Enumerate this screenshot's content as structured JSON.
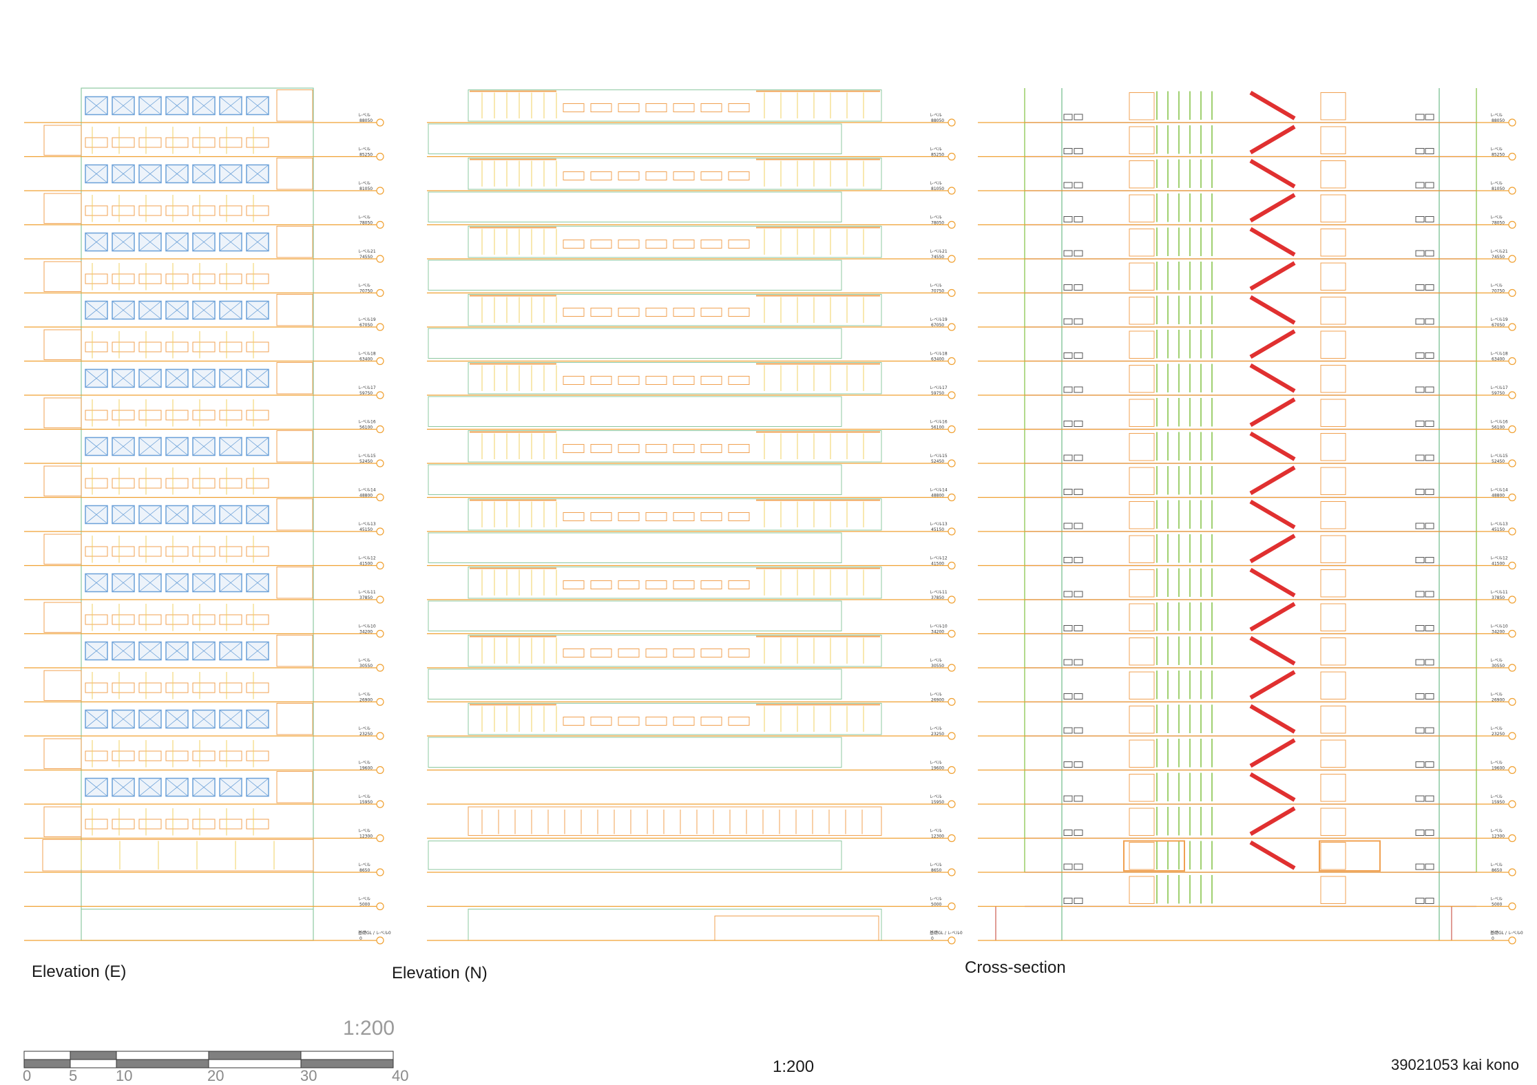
{
  "drawings": {
    "east": {
      "caption": "Elevation (E)"
    },
    "north": {
      "caption": "Elevation (N)"
    },
    "section": {
      "caption": "Cross-section"
    }
  },
  "levels": [
    {
      "label": "レベル",
      "value": "88050"
    },
    {
      "label": "レベル",
      "value": "85250"
    },
    {
      "label": "レベル",
      "value": "81050"
    },
    {
      "label": "レベル",
      "value": "78050"
    },
    {
      "label": "レベル21",
      "value": "74550"
    },
    {
      "label": "レベル",
      "value": "70750"
    },
    {
      "label": "レベル19",
      "value": "67050"
    },
    {
      "label": "レベル18",
      "value": "63400"
    },
    {
      "label": "レベル17",
      "value": "59750"
    },
    {
      "label": "レベル16",
      "value": "56100"
    },
    {
      "label": "レベル15",
      "value": "52450"
    },
    {
      "label": "レベル14",
      "value": "48800"
    },
    {
      "label": "レベル13",
      "value": "45150"
    },
    {
      "label": "レベル12",
      "value": "41500"
    },
    {
      "label": "レベル11",
      "value": "37850"
    },
    {
      "label": "レベル10",
      "value": "34200"
    },
    {
      "label": "レベル",
      "value": "30550"
    },
    {
      "label": "レベル",
      "value": "26900"
    },
    {
      "label": "レベル",
      "value": "23250"
    },
    {
      "label": "レベル",
      "value": "19600"
    },
    {
      "label": "レベル",
      "value": "15950"
    },
    {
      "label": "レベル",
      "value": "12300"
    },
    {
      "label": "レベル",
      "value": "8650"
    },
    {
      "label": "レベル",
      "value": "5000"
    },
    {
      "label": "基礎GL / レベル0",
      "value": "0"
    }
  ],
  "scale_bar": {
    "ratio": "1:200",
    "ticks": [
      "0",
      "5",
      "10",
      "20",
      "30",
      "40"
    ]
  },
  "sheet_scale": "1:200",
  "author": "39021053 kai kono",
  "colors": {
    "level_line": "#f0a030",
    "slab": "#9b59b6",
    "outline": "#8cc8a0",
    "window_yellow": "#f0d060",
    "window_orange": "#f0a050",
    "glass_blue": "#6aa0d8",
    "stair_red": "#e03030",
    "green": "#80c040",
    "scale_dark": "#808080"
  }
}
